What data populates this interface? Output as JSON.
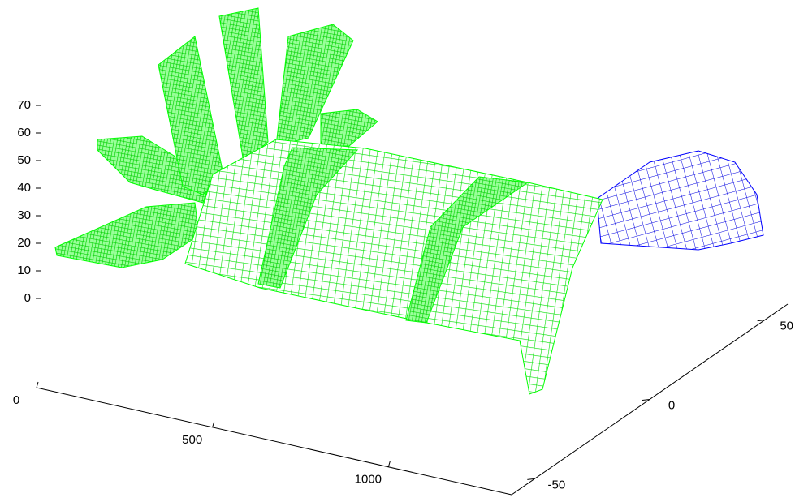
{
  "chart_data": {
    "type": "surface3d",
    "xlim": [
      0,
      1350
    ],
    "xticks": [
      0,
      500,
      1000
    ],
    "ylim": [
      -60,
      60
    ],
    "yticks": [
      -50,
      0,
      50
    ],
    "zlim": [
      0,
      70
    ],
    "zticks": [
      0,
      10,
      20,
      30,
      40,
      50,
      60,
      70
    ],
    "colors": {
      "top": "#00ff00",
      "bottom": "#0000ff",
      "axis": "#000000"
    }
  }
}
